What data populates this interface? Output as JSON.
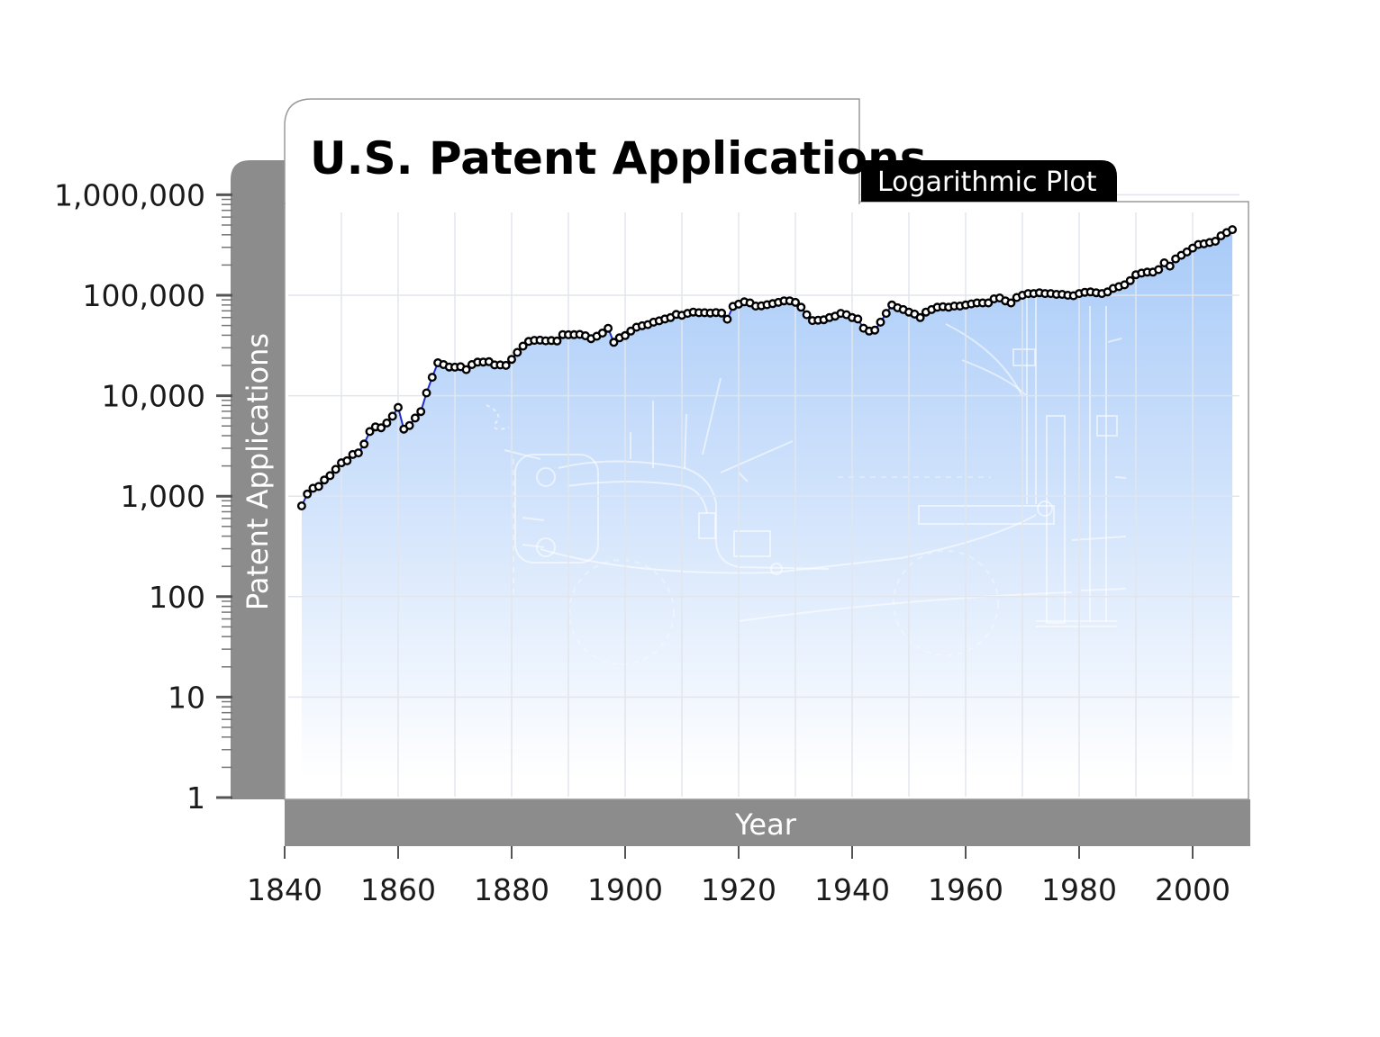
{
  "chart_data": {
    "type": "line",
    "title": "U.S. Patent Applications",
    "subtitle": "Logarithmic Plot",
    "xlabel": "Year",
    "ylabel": "Patent Applications",
    "yscale": "log",
    "xlim": [
      1840,
      2010
    ],
    "ylim": [
      1,
      1000000
    ],
    "x_ticks": [
      1840,
      1860,
      1880,
      1900,
      1920,
      1940,
      1960,
      1980,
      2000
    ],
    "x_tick_labels": [
      "1840",
      "1860",
      "1880",
      "1900",
      "1920",
      "1940",
      "1960",
      "1980",
      "2000"
    ],
    "y_ticks": [
      1,
      10,
      100,
      1000,
      10000,
      100000,
      1000000
    ],
    "y_tick_labels": [
      "1",
      "10",
      "100",
      "1,000",
      "10,000",
      "100,000",
      "1,000,000"
    ],
    "grid": true,
    "legend": "none",
    "colors": {
      "line": "#1f2fc8",
      "marker_edge": "#000000",
      "marker_fill": "#ffffff",
      "fill_top": "#a9cbf8",
      "fill_bottom": "#ffffff",
      "axis_band": "#8c8c8c",
      "tag_bg": "#000000"
    },
    "series": [
      {
        "values": [
          [
            1843,
            800
          ],
          [
            1844,
            1050
          ],
          [
            1845,
            1200
          ],
          [
            1846,
            1250
          ],
          [
            1847,
            1450
          ],
          [
            1848,
            1600
          ],
          [
            1849,
            1850
          ],
          [
            1850,
            2150
          ],
          [
            1851,
            2250
          ],
          [
            1852,
            2600
          ],
          [
            1853,
            2700
          ],
          [
            1854,
            3300
          ],
          [
            1855,
            4400
          ],
          [
            1856,
            4900
          ],
          [
            1857,
            4800
          ],
          [
            1858,
            5350
          ],
          [
            1859,
            6250
          ],
          [
            1860,
            7650
          ],
          [
            1861,
            4650
          ],
          [
            1862,
            5050
          ],
          [
            1863,
            6000
          ],
          [
            1864,
            6950
          ],
          [
            1865,
            10650
          ],
          [
            1866,
            15250
          ],
          [
            1867,
            21300
          ],
          [
            1868,
            20400
          ],
          [
            1869,
            19300
          ],
          [
            1870,
            19250
          ],
          [
            1871,
            19450
          ],
          [
            1872,
            18200
          ],
          [
            1873,
            20400
          ],
          [
            1874,
            21600
          ],
          [
            1875,
            21650
          ],
          [
            1876,
            21800
          ],
          [
            1877,
            20250
          ],
          [
            1878,
            20250
          ],
          [
            1879,
            20050
          ],
          [
            1880,
            23000
          ],
          [
            1881,
            26950
          ],
          [
            1882,
            31200
          ],
          [
            1883,
            34700
          ],
          [
            1884,
            35550
          ],
          [
            1885,
            35700
          ],
          [
            1886,
            35200
          ],
          [
            1887,
            35450
          ],
          [
            1888,
            35050
          ],
          [
            1889,
            40550
          ],
          [
            1890,
            40400
          ],
          [
            1891,
            40500
          ],
          [
            1892,
            40750
          ],
          [
            1893,
            39500
          ],
          [
            1894,
            37000
          ],
          [
            1895,
            39150
          ],
          [
            1896,
            42050
          ],
          [
            1897,
            46900
          ],
          [
            1898,
            34000
          ],
          [
            1899,
            37700
          ],
          [
            1900,
            39650
          ],
          [
            1901,
            44000
          ],
          [
            1902,
            48050
          ],
          [
            1903,
            49700
          ],
          [
            1904,
            51000
          ],
          [
            1905,
            54000
          ],
          [
            1906,
            55600
          ],
          [
            1907,
            58000
          ],
          [
            1908,
            60000
          ],
          [
            1909,
            64400
          ],
          [
            1910,
            63300
          ],
          [
            1911,
            66000
          ],
          [
            1912,
            68000
          ],
          [
            1913,
            67000
          ],
          [
            1914,
            67000
          ],
          [
            1915,
            66600
          ],
          [
            1916,
            67300
          ],
          [
            1917,
            66500
          ],
          [
            1918,
            57800
          ],
          [
            1919,
            77500
          ],
          [
            1920,
            81500
          ],
          [
            1921,
            86000
          ],
          [
            1922,
            84000
          ],
          [
            1923,
            78000
          ],
          [
            1924,
            78500
          ],
          [
            1925,
            80500
          ],
          [
            1926,
            82500
          ],
          [
            1927,
            85000
          ],
          [
            1928,
            88000
          ],
          [
            1929,
            88000
          ],
          [
            1930,
            85000
          ],
          [
            1931,
            76000
          ],
          [
            1932,
            64000
          ],
          [
            1933,
            56000
          ],
          [
            1934,
            56500
          ],
          [
            1935,
            57000
          ],
          [
            1936,
            60000
          ],
          [
            1937,
            62000
          ],
          [
            1938,
            66000
          ],
          [
            1939,
            64000
          ],
          [
            1940,
            60000
          ],
          [
            1941,
            58000
          ],
          [
            1942,
            47000
          ],
          [
            1943,
            44000
          ],
          [
            1944,
            45000
          ],
          [
            1945,
            54000
          ],
          [
            1946,
            66000
          ],
          [
            1947,
            80000
          ],
          [
            1948,
            75000
          ],
          [
            1949,
            72000
          ],
          [
            1950,
            68000
          ],
          [
            1951,
            65000
          ],
          [
            1952,
            60000
          ],
          [
            1953,
            68000
          ],
          [
            1954,
            72000
          ],
          [
            1955,
            76000
          ],
          [
            1956,
            77000
          ],
          [
            1957,
            76000
          ],
          [
            1958,
            78000
          ],
          [
            1959,
            78000
          ],
          [
            1960,
            80000
          ],
          [
            1961,
            82000
          ],
          [
            1962,
            84000
          ],
          [
            1963,
            84000
          ],
          [
            1964,
            84000
          ],
          [
            1965,
            92000
          ],
          [
            1966,
            94000
          ],
          [
            1967,
            88000
          ],
          [
            1968,
            84000
          ],
          [
            1969,
            95000
          ],
          [
            1970,
            100000
          ],
          [
            1971,
            104000
          ],
          [
            1972,
            104000
          ],
          [
            1973,
            106000
          ],
          [
            1974,
            104000
          ],
          [
            1975,
            104000
          ],
          [
            1976,
            102000
          ],
          [
            1977,
            102000
          ],
          [
            1978,
            100000
          ],
          [
            1979,
            99000
          ],
          [
            1980,
            104000
          ],
          [
            1981,
            107000
          ],
          [
            1982,
            108000
          ],
          [
            1983,
            106000
          ],
          [
            1984,
            104000
          ],
          [
            1985,
            108000
          ],
          [
            1986,
            117000
          ],
          [
            1987,
            122000
          ],
          [
            1988,
            127000
          ],
          [
            1989,
            140000
          ],
          [
            1990,
            160000
          ],
          [
            1991,
            166000
          ],
          [
            1992,
            170000
          ],
          [
            1993,
            170000
          ],
          [
            1994,
            180000
          ],
          [
            1995,
            210000
          ],
          [
            1996,
            195000
          ],
          [
            1997,
            230000
          ],
          [
            1998,
            250000
          ],
          [
            1999,
            270000
          ],
          [
            2000,
            295000
          ],
          [
            2001,
            320000
          ],
          [
            2002,
            325000
          ],
          [
            2003,
            335000
          ],
          [
            2004,
            345000
          ],
          [
            2005,
            390000
          ],
          [
            2006,
            420000
          ],
          [
            2007,
            450000
          ]
        ]
      }
    ]
  }
}
